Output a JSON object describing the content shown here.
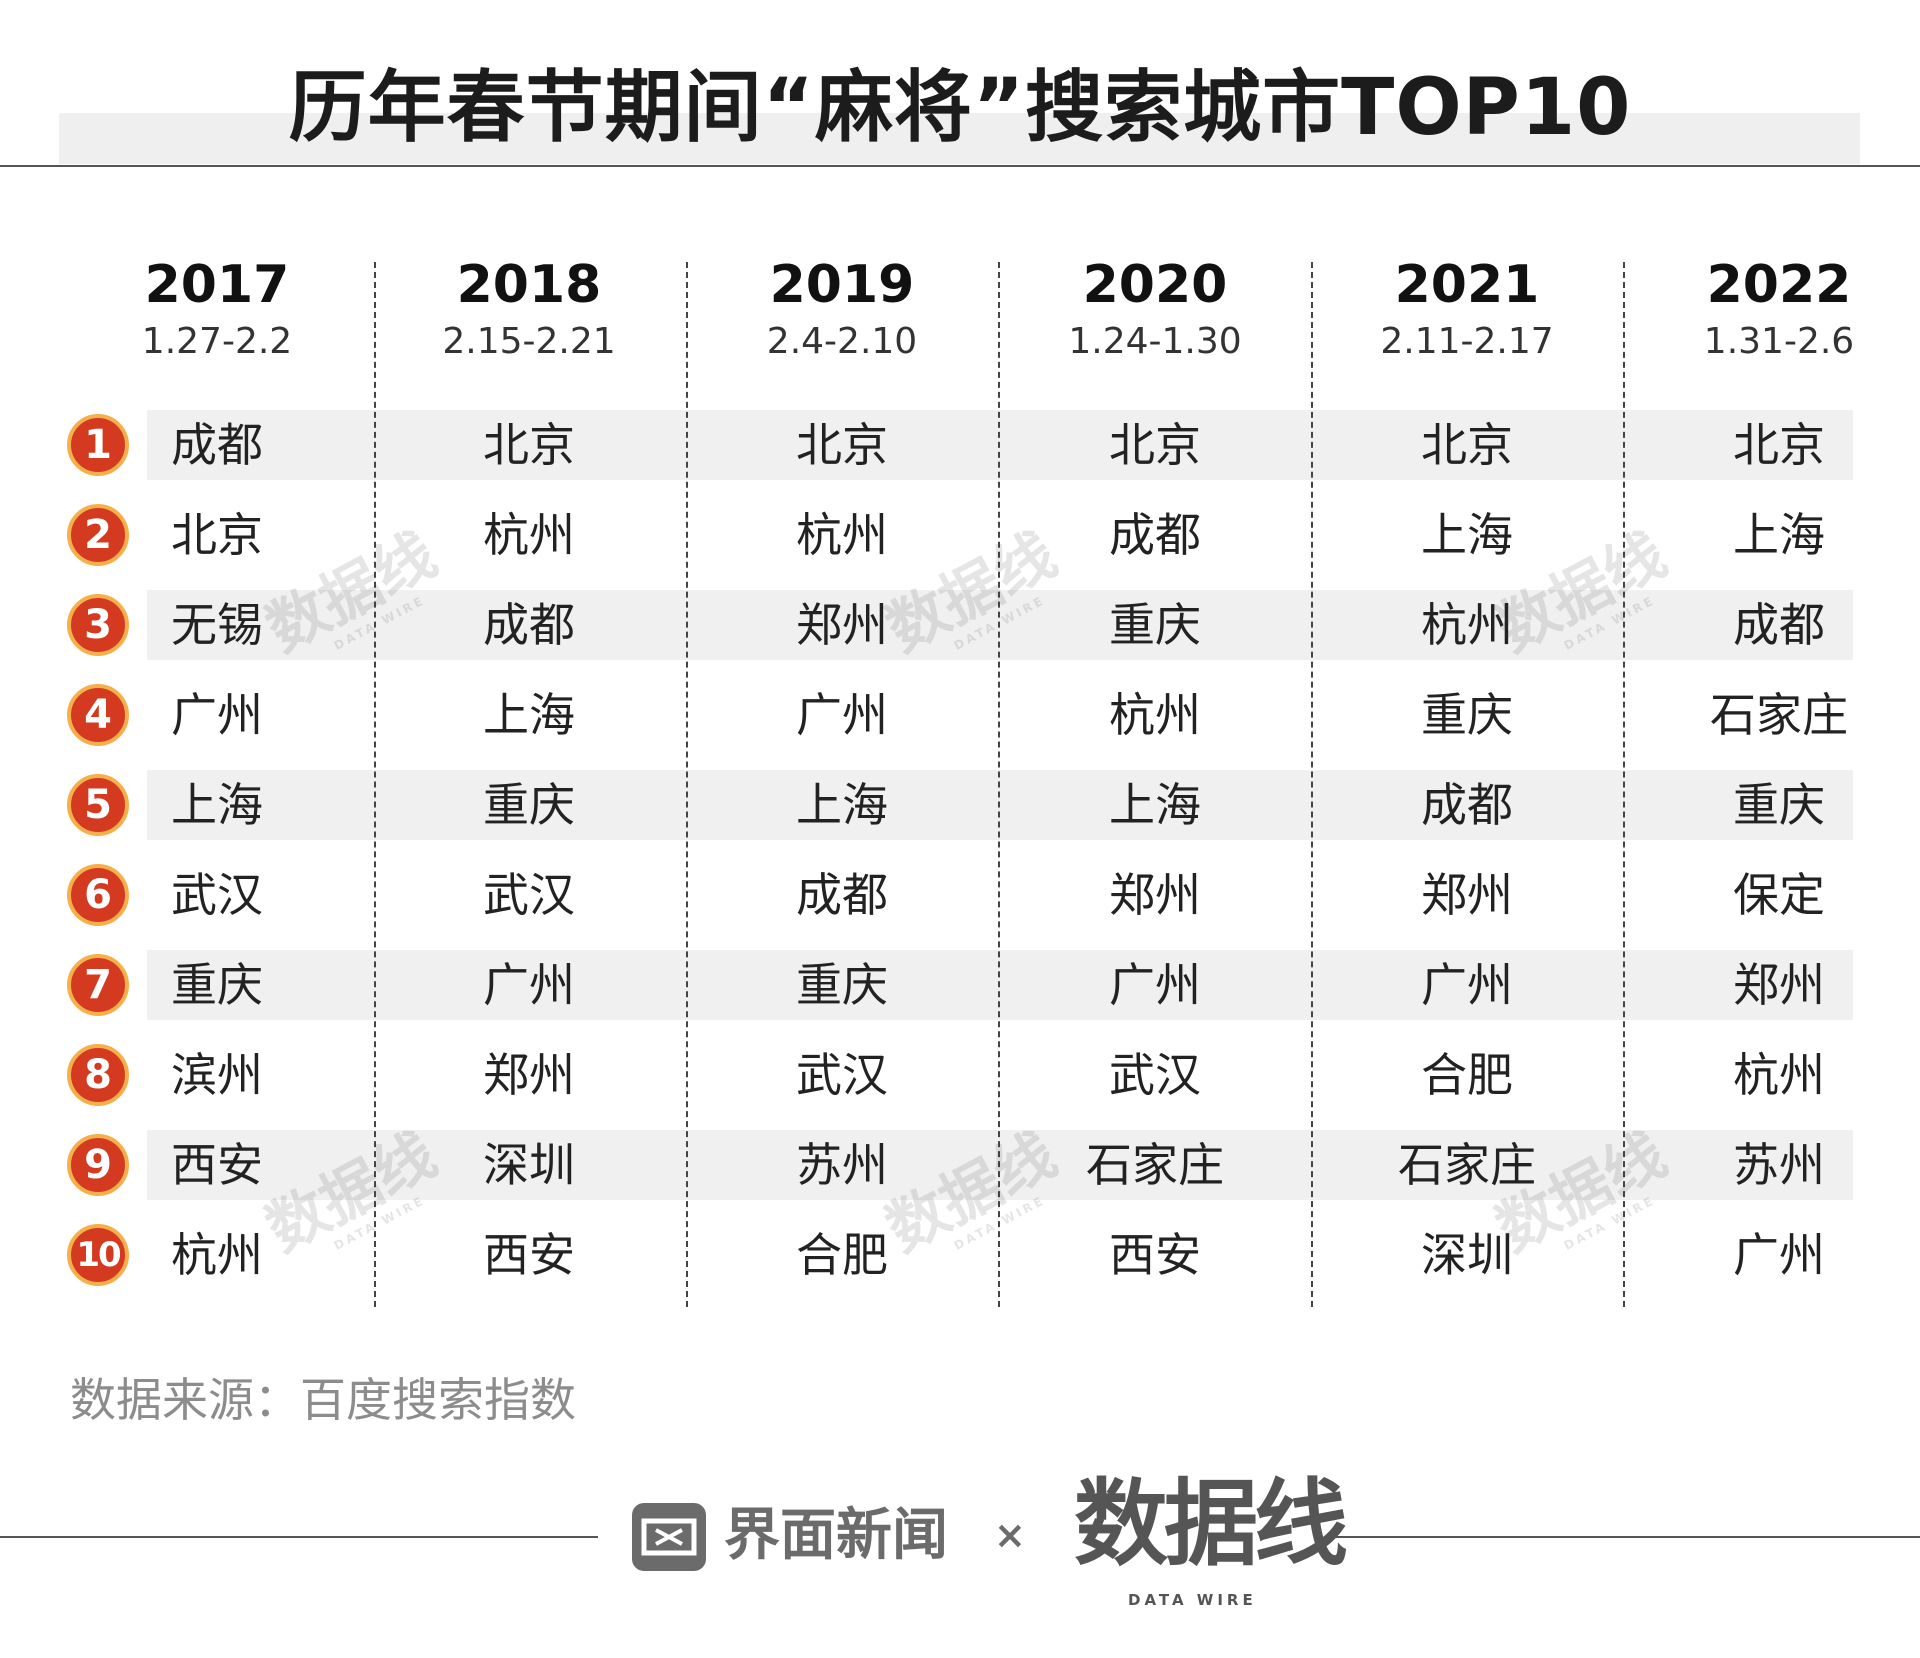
{
  "title": "历年春节期间“麻将”搜索城市TOP10",
  "source": "数据来源：百度搜索指数",
  "footer": {
    "brand_left": "界面新闻",
    "times_sign": "×",
    "brand_right": "数据线",
    "brand_right_sub": "DATA WIRE"
  },
  "watermark": {
    "text": "数据线",
    "sub": "DATA WIRE"
  },
  "colors": {
    "badge_fill": "#d33a1f",
    "badge_ring": "#f6b04b",
    "band": "#f0f0f0"
  },
  "chart_data": {
    "type": "table",
    "title": "历年春节期间“麻将”搜索城市TOP10",
    "ranks": [
      "1",
      "2",
      "3",
      "4",
      "5",
      "6",
      "7",
      "8",
      "9",
      "10"
    ],
    "columns": [
      {
        "year": "2017",
        "dates": "1.27-2.2",
        "cities": [
          "成都",
          "北京",
          "无锡",
          "广州",
          "上海",
          "武汉",
          "重庆",
          "滨州",
          "西安",
          "杭州"
        ]
      },
      {
        "year": "2018",
        "dates": "2.15-2.21",
        "cities": [
          "北京",
          "杭州",
          "成都",
          "上海",
          "重庆",
          "武汉",
          "广州",
          "郑州",
          "深圳",
          "西安"
        ]
      },
      {
        "year": "2019",
        "dates": "2.4-2.10",
        "cities": [
          "北京",
          "杭州",
          "郑州",
          "广州",
          "上海",
          "成都",
          "重庆",
          "武汉",
          "苏州",
          "合肥"
        ]
      },
      {
        "year": "2020",
        "dates": "1.24-1.30",
        "cities": [
          "北京",
          "成都",
          "重庆",
          "杭州",
          "上海",
          "郑州",
          "广州",
          "武汉",
          "石家庄",
          "西安"
        ]
      },
      {
        "year": "2021",
        "dates": "2.11-2.17",
        "cities": [
          "北京",
          "上海",
          "杭州",
          "重庆",
          "成都",
          "郑州",
          "广州",
          "合肥",
          "石家庄",
          "深圳"
        ]
      },
      {
        "year": "2022",
        "dates": "1.31-2.6",
        "cities": [
          "北京",
          "上海",
          "成都",
          "石家庄",
          "重庆",
          "保定",
          "郑州",
          "杭州",
          "苏州",
          "广州"
        ]
      }
    ]
  }
}
